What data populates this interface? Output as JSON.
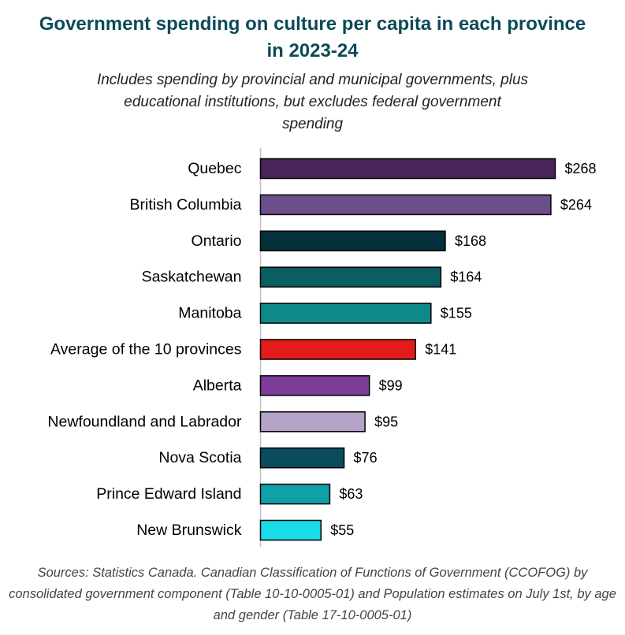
{
  "chart_data": {
    "type": "bar",
    "orientation": "horizontal",
    "title": "Government spending on culture per capita in each province in 2023-24",
    "subtitle": "Includes spending by provincial and municipal governments, plus educational institutions, but excludes federal government spending",
    "source": "Sources: Statistics Canada. Canadian Classification of Functions of Government (CCOFOG) by consolidated government component (Table 10-10-0005-01) and Population estimates on July 1st, by age and gender (Table 17-10-0005-01)",
    "xlabel": "",
    "ylabel": "",
    "value_prefix": "$",
    "grid": false,
    "legend": "none",
    "xlim": [
      0,
      268
    ],
    "categories": [
      "Quebec",
      "British Columbia",
      "Ontario",
      "Saskatchewan",
      "Manitoba",
      "Average of the 10 provinces",
      "Alberta",
      "Newfoundland and Labrador",
      "Nova Scotia",
      "Prince Edward Island",
      "New Brunswick"
    ],
    "values": [
      268,
      264,
      168,
      164,
      155,
      141,
      99,
      95,
      76,
      63,
      55
    ],
    "value_labels": [
      "$268",
      "$264",
      "$168",
      "$164",
      "$155",
      "$141",
      "$99",
      "$95",
      "$76",
      "$63",
      "$55"
    ],
    "colors": [
      "#4a235a",
      "#6c4f8a",
      "#06303b",
      "#0b5d62",
      "#0e8a8a",
      "#e31b1b",
      "#7d3c98",
      "#b4a2c8",
      "#084c5e",
      "#10a0a8",
      "#19dce6"
    ]
  }
}
